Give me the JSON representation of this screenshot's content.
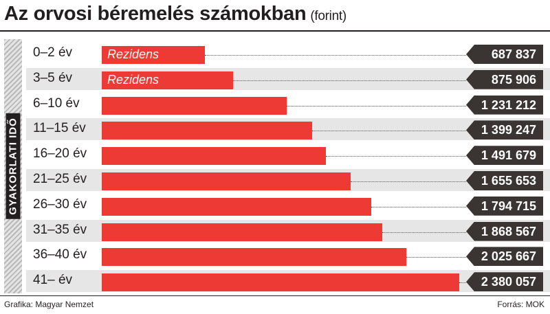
{
  "header": {
    "title": "Az orvosi béremelés számokban",
    "subtitle": "(forint)"
  },
  "side_label": "GYAKORLATI IDŐ",
  "footer": {
    "credit": "Grafika: Magyar Nemzet",
    "source": "Forrás: MOK"
  },
  "colors": {
    "bar": "#ee3a35",
    "value_box": "#3a3533",
    "row_shade": "#e6e6e6"
  },
  "chart_data": {
    "type": "bar",
    "orientation": "horizontal",
    "title": "Az orvosi béremelés számokban",
    "subtitle": "(forint)",
    "ylabel": "GYAKORLATI IDŐ",
    "categories": [
      "0–2 év",
      "3–5 év",
      "6–10 év",
      "11–15 év",
      "16–20 év",
      "21–25 év",
      "26–30 év",
      "31–35 év",
      "36–40 év",
      "41– év"
    ],
    "values": [
      687837,
      875906,
      1231212,
      1399247,
      1491679,
      1655653,
      1794715,
      1868567,
      2025667,
      2380057
    ],
    "value_labels": [
      "687 837",
      "875 906",
      "1 231 212",
      "1 399 247",
      "1 491 679",
      "1 655 653",
      "1 794 715",
      "1 868 567",
      "2 025 667",
      "2 380 057"
    ],
    "bar_labels": [
      "Rezidens",
      "Rezidens",
      "",
      "",
      "",
      "",
      "",
      "",
      "",
      ""
    ],
    "xlim": [
      0,
      2380057
    ]
  }
}
